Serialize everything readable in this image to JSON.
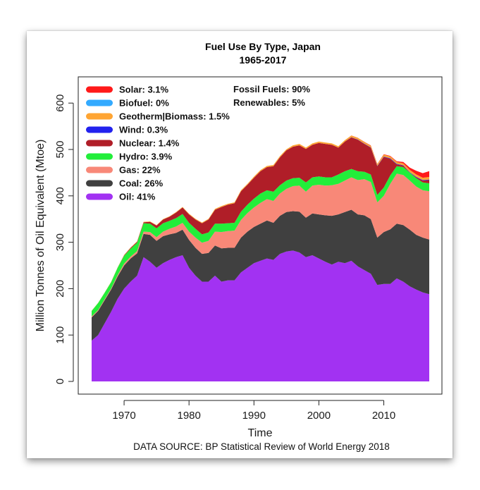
{
  "chart_data": {
    "type": "area",
    "title": "Fuel Use By Type, Japan",
    "subtitle": "1965-2017",
    "xlabel": "Time",
    "ylabel": "Million Tonnes of Oil Equivalent (Mtoe)",
    "source": "DATA SOURCE: BP Statistical Review of World Energy 2018",
    "xlim": [
      1965,
      2017
    ],
    "ylim": [
      0,
      650
    ],
    "x_ticks": [
      1970,
      1980,
      1990,
      2000,
      2010
    ],
    "y_ticks": [
      0,
      100,
      200,
      300,
      400,
      500,
      600
    ],
    "legend_position": "top-left",
    "summary": [
      {
        "label": "Fossil Fuels:",
        "value": "90%"
      },
      {
        "label": "Renewables:",
        "value": "5%"
      }
    ],
    "stack_order_bottom_to_top": [
      "Oil",
      "Coal",
      "Gas",
      "Hydro",
      "Nuclear",
      "Wind",
      "Geotherm|Biomass",
      "Biofuel",
      "Solar"
    ],
    "legend": [
      {
        "name": "Solar",
        "label": "Solar:",
        "share": "3.1%",
        "color": "#ff1a1a"
      },
      {
        "name": "Biofuel",
        "label": "Biofuel:",
        "share": "0%",
        "color": "#33aaff"
      },
      {
        "name": "Geotherm|Biomass",
        "label": "Geotherm|Biomass:",
        "share": "1.5%",
        "color": "#ffa533"
      },
      {
        "name": "Wind",
        "label": "Wind:",
        "share": "0.3%",
        "color": "#2222ee"
      },
      {
        "name": "Nuclear",
        "label": "Nuclear:",
        "share": "1.4%",
        "color": "#b01e28"
      },
      {
        "name": "Hydro",
        "label": "Hydro:",
        "share": "3.9%",
        "color": "#22ee3a"
      },
      {
        "name": "Gas",
        "label": "Gas:",
        "share": "22%",
        "color": "#f88878"
      },
      {
        "name": "Coal",
        "label": "Coal:",
        "share": "26%",
        "color": "#404040"
      },
      {
        "name": "Oil",
        "label": "Oil:",
        "share": "41%",
        "color": "#a232f2"
      }
    ],
    "x": [
      1965,
      1966,
      1967,
      1968,
      1969,
      1970,
      1971,
      1972,
      1973,
      1974,
      1975,
      1976,
      1977,
      1978,
      1979,
      1980,
      1981,
      1982,
      1983,
      1984,
      1985,
      1986,
      1987,
      1988,
      1989,
      1990,
      1991,
      1992,
      1993,
      1994,
      1995,
      1996,
      1997,
      1998,
      1999,
      2000,
      2001,
      2002,
      2003,
      2004,
      2005,
      2006,
      2007,
      2008,
      2009,
      2010,
      2011,
      2012,
      2013,
      2014,
      2015,
      2016,
      2017
    ],
    "series": [
      {
        "name": "Oil",
        "values": [
          88,
          100,
          125,
          150,
          178,
          200,
          215,
          228,
          268,
          258,
          245,
          255,
          262,
          268,
          272,
          245,
          228,
          215,
          215,
          228,
          215,
          218,
          218,
          235,
          245,
          255,
          260,
          265,
          262,
          275,
          280,
          282,
          278,
          268,
          272,
          265,
          258,
          252,
          258,
          255,
          260,
          248,
          240,
          232,
          208,
          210,
          210,
          222,
          215,
          205,
          198,
          192,
          188
        ]
      },
      {
        "name": "Coal",
        "values": [
          50,
          52,
          50,
          48,
          48,
          50,
          50,
          48,
          50,
          58,
          58,
          58,
          55,
          52,
          55,
          60,
          60,
          60,
          62,
          65,
          72,
          70,
          70,
          75,
          78,
          78,
          80,
          82,
          80,
          82,
          85,
          85,
          88,
          85,
          90,
          95,
          100,
          105,
          102,
          110,
          110,
          112,
          118,
          118,
          102,
          112,
          118,
          118,
          122,
          122,
          118,
          118,
          118
        ]
      },
      {
        "name": "Gas",
        "values": [
          2,
          2,
          2,
          2,
          3,
          4,
          4,
          5,
          5,
          6,
          8,
          10,
          12,
          14,
          15,
          18,
          22,
          24,
          26,
          30,
          35,
          36,
          37,
          38,
          40,
          42,
          45,
          46,
          47,
          48,
          50,
          54,
          56,
          56,
          60,
          64,
          64,
          66,
          66,
          68,
          70,
          74,
          78,
          80,
          76,
          78,
          98,
          108,
          108,
          106,
          104,
          102,
          104
        ]
      },
      {
        "name": "Hydro",
        "values": [
          12,
          15,
          14,
          14,
          16,
          17,
          17,
          18,
          18,
          18,
          19,
          18,
          17,
          18,
          19,
          19,
          19,
          18,
          18,
          17,
          18,
          17,
          17,
          18,
          18,
          19,
          20,
          19,
          20,
          18,
          18,
          17,
          17,
          20,
          18,
          18,
          18,
          17,
          20,
          20,
          18,
          19,
          16,
          16,
          16,
          18,
          18,
          16,
          17,
          17,
          18,
          17,
          17
        ]
      },
      {
        "name": "Nuclear",
        "values": [
          0,
          0,
          0,
          0,
          0,
          1,
          2,
          2,
          2,
          4,
          6,
          8,
          9,
          12,
          14,
          18,
          20,
          24,
          28,
          30,
          36,
          40,
          42,
          44,
          43,
          45,
          48,
          50,
          55,
          60,
          65,
          68,
          70,
          72,
          70,
          72,
          72,
          70,
          58,
          64,
          68,
          68,
          60,
          58,
          62,
          66,
          36,
          4,
          3,
          0,
          2,
          4,
          7
        ]
      },
      {
        "name": "Wind",
        "values": [
          0,
          0,
          0,
          0,
          0,
          0,
          0,
          0,
          0,
          0,
          0,
          0,
          0,
          0,
          0,
          0,
          0,
          0,
          0,
          0,
          0,
          0,
          0,
          0,
          0,
          0,
          0,
          0,
          0,
          0,
          0,
          0,
          0,
          0,
          0,
          0,
          0,
          0,
          0,
          0,
          0.4,
          0.4,
          0.5,
          0.6,
          0.7,
          0.8,
          1,
          1,
          1,
          1,
          1,
          1,
          1.3
        ]
      },
      {
        "name": "Geotherm|Biomass",
        "values": [
          0.5,
          0.5,
          0.5,
          0.6,
          0.6,
          0.8,
          0.8,
          0.8,
          1,
          1,
          1,
          1,
          1,
          1.2,
          1.2,
          1.5,
          1.5,
          1.5,
          1.5,
          2,
          2,
          2,
          2,
          2,
          2,
          2.5,
          2.5,
          2.5,
          2.5,
          2.5,
          2.5,
          3,
          3,
          3,
          3,
          3,
          3,
          3,
          3,
          3,
          3.5,
          3.5,
          3.5,
          3.5,
          3.5,
          4,
          4,
          4,
          4,
          5,
          5,
          5,
          5.5
        ]
      },
      {
        "name": "Biofuel",
        "values": [
          0,
          0,
          0,
          0,
          0,
          0,
          0,
          0,
          0,
          0,
          0,
          0,
          0,
          0,
          0,
          0,
          0,
          0,
          0,
          0,
          0,
          0,
          0,
          0,
          0,
          0,
          0,
          0,
          0,
          0,
          0,
          0,
          0,
          0,
          0,
          0,
          0,
          0,
          0,
          0,
          0,
          0,
          0,
          0,
          0,
          0,
          0,
          0,
          0,
          0,
          0,
          0,
          0
        ]
      },
      {
        "name": "Solar",
        "values": [
          0,
          0,
          0,
          0,
          0,
          0,
          0,
          0,
          0,
          0,
          0,
          0,
          0,
          0,
          0,
          0,
          0,
          0,
          0,
          0,
          0,
          0,
          0,
          0,
          0,
          0,
          0,
          0,
          0,
          0,
          0,
          0,
          0,
          0,
          0,
          0,
          0,
          0,
          0,
          0,
          0.3,
          0.4,
          0.5,
          0.5,
          0.6,
          0.8,
          1.2,
          1.5,
          3,
          5,
          8,
          10,
          12.5
        ]
      }
    ]
  }
}
